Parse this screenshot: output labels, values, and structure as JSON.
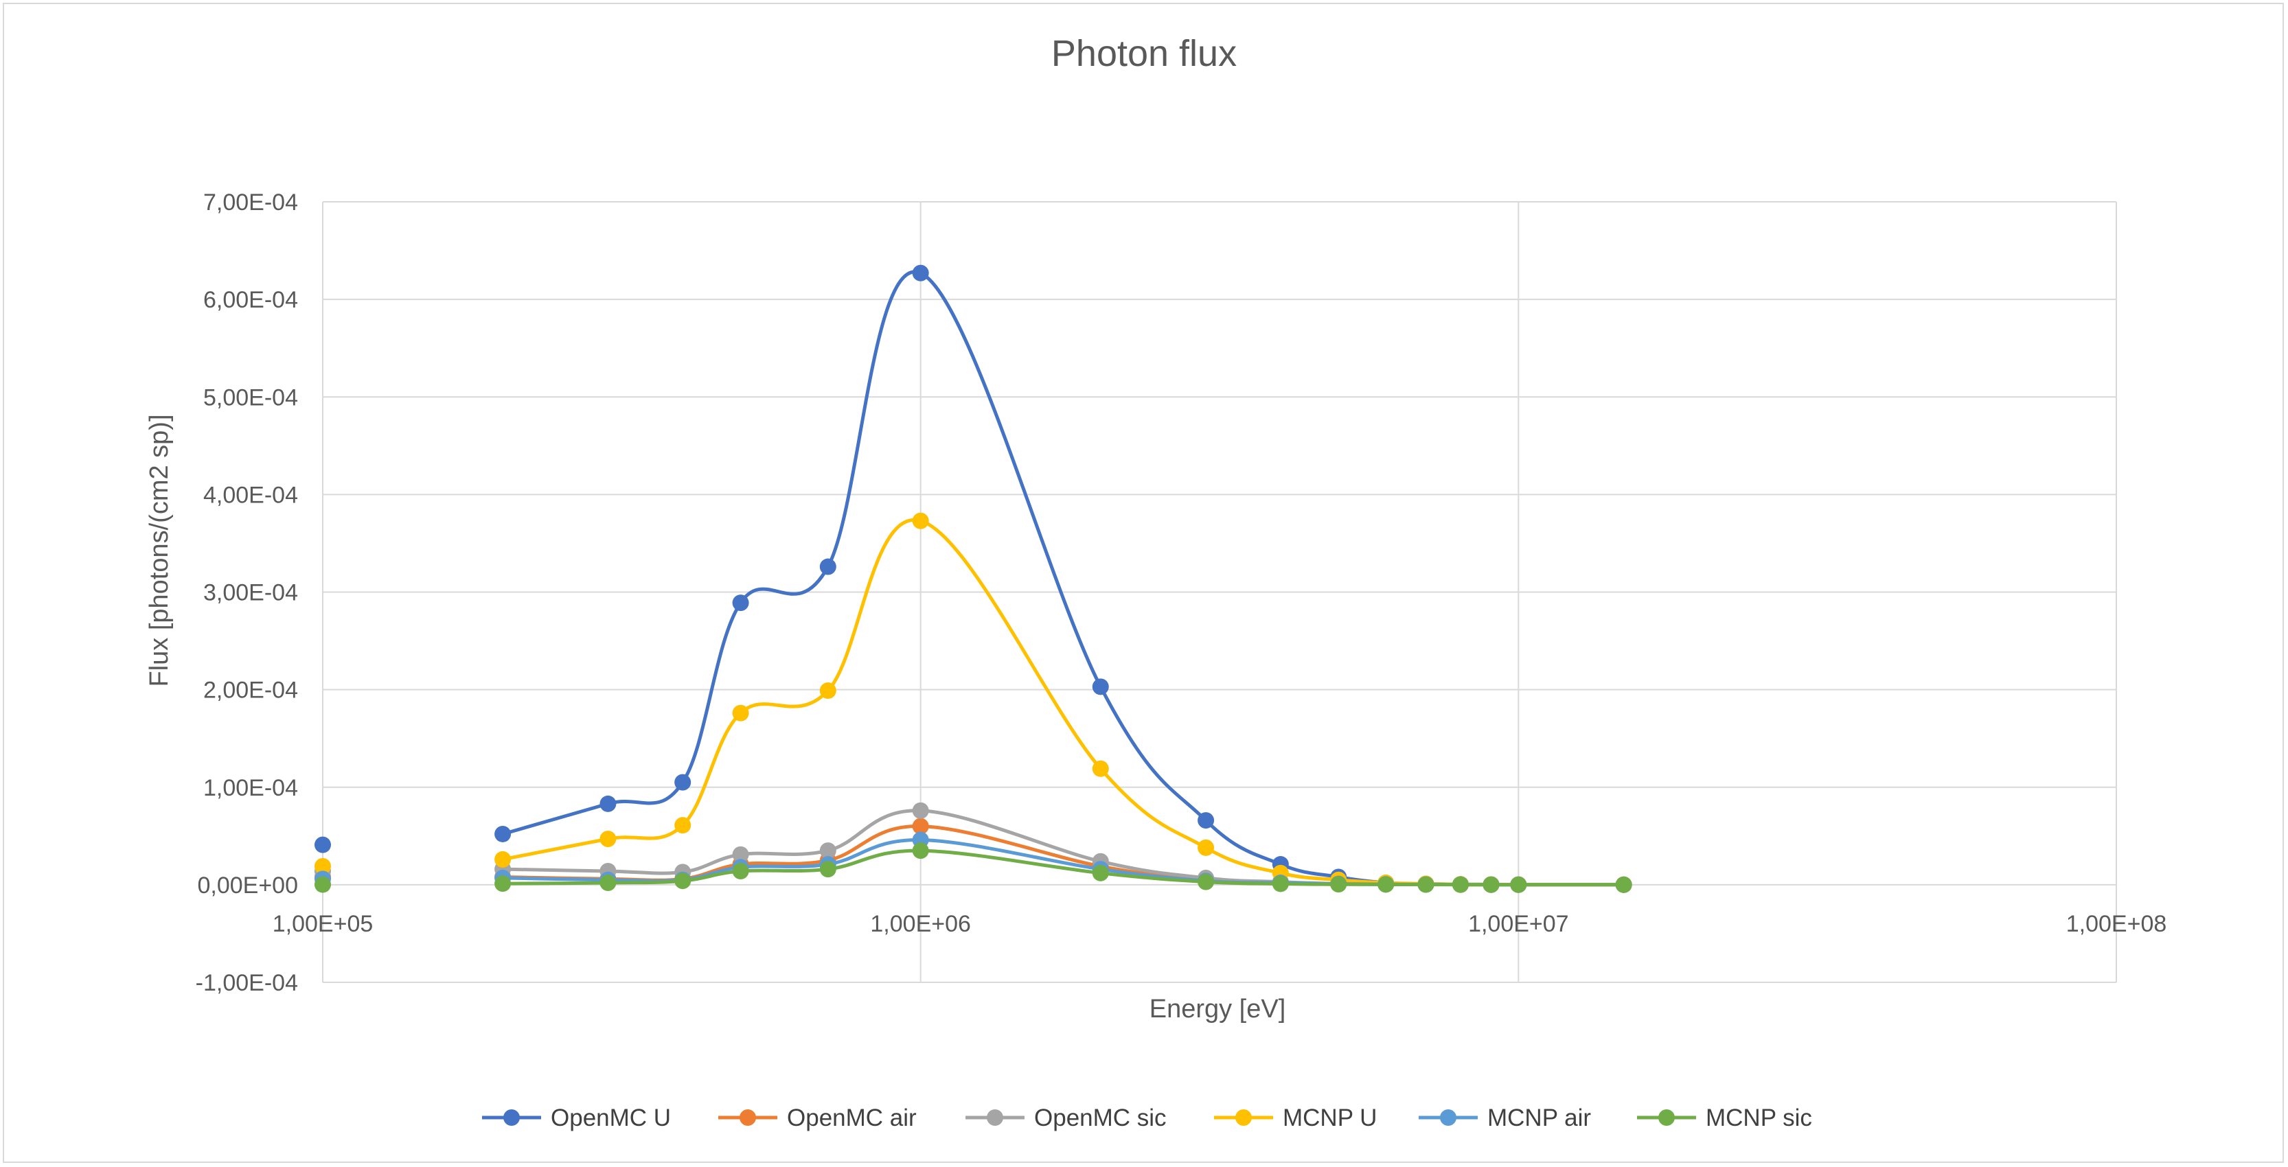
{
  "chart_data": {
    "type": "line",
    "title": "Photon flux",
    "xlabel": "Energy [eV]",
    "ylabel": "Flux [photons/(cm2 sp)]",
    "xscale": "log",
    "xlim": [
      100000,
      100000000
    ],
    "ylim": [
      -0.0001,
      0.0007
    ],
    "x_ticks": [
      100000,
      1000000,
      10000000,
      100000000
    ],
    "x_tick_labels": [
      "1,00E+05",
      "1,00E+06",
      "1,00E+07",
      "1,00E+08"
    ],
    "y_ticks": [
      -0.0001,
      0,
      0.0001,
      0.0002,
      0.0003,
      0.0004,
      0.0005,
      0.0006,
      0.0007
    ],
    "y_tick_labels": [
      "-1,00E-04",
      "0,00E+00",
      "1,00E-04",
      "2,00E-04",
      "3,00E-04",
      "4,00E-04",
      "5,00E-04",
      "6,00E-04",
      "7,00E-04"
    ],
    "grid": true,
    "legend_position": "bottom",
    "series": [
      {
        "name": "OpenMC U",
        "color": "#4472C4",
        "smooth": true,
        "points": [
          [
            100000,
            4.1e-05
          ],
          [
            200000,
            5.2e-05
          ],
          [
            300000,
            8.3e-05
          ],
          [
            400000,
            0.000105
          ],
          [
            500000,
            0.000289
          ],
          [
            700000,
            0.000326
          ],
          [
            1000000,
            0.000627
          ],
          [
            2000000,
            0.000203
          ],
          [
            3000000,
            6.6e-05
          ],
          [
            4000000,
            2.1e-05
          ],
          [
            5000000,
            8e-06
          ],
          [
            6000000,
            2e-06
          ],
          [
            7000000,
            1e-06
          ],
          [
            8000000,
            5e-07
          ],
          [
            9000000,
            3e-07
          ],
          [
            10000000,
            2e-07
          ],
          [
            15000000,
            1e-07
          ]
        ]
      },
      {
        "name": "OpenMC air",
        "color": "#ED7D31",
        "smooth": true,
        "points": [
          [
            100000,
            8e-06
          ],
          [
            200000,
            8e-06
          ],
          [
            300000,
            6e-06
          ],
          [
            400000,
            6e-06
          ],
          [
            500000,
            2.1e-05
          ],
          [
            700000,
            2.5e-05
          ],
          [
            1000000,
            6e-05
          ],
          [
            2000000,
            1.9e-05
          ],
          [
            3000000,
            5e-06
          ],
          [
            4000000,
            2e-06
          ],
          [
            5000000,
            1e-06
          ],
          [
            6000000,
            5e-07
          ],
          [
            7000000,
            3e-07
          ],
          [
            8000000,
            2e-07
          ],
          [
            9000000,
            1e-07
          ],
          [
            10000000,
            1e-07
          ],
          [
            15000000,
            5e-08
          ]
        ]
      },
      {
        "name": "OpenMC sic",
        "color": "#A5A5A5",
        "smooth": true,
        "points": [
          [
            100000,
            1.4e-05
          ],
          [
            200000,
            1.6e-05
          ],
          [
            300000,
            1.4e-05
          ],
          [
            400000,
            1.3e-05
          ],
          [
            500000,
            3.1e-05
          ],
          [
            700000,
            3.5e-05
          ],
          [
            1000000,
            7.6e-05
          ],
          [
            2000000,
            2.4e-05
          ],
          [
            3000000,
            7e-06
          ],
          [
            4000000,
            3e-06
          ],
          [
            5000000,
            1e-06
          ],
          [
            6000000,
            5e-07
          ],
          [
            7000000,
            3e-07
          ],
          [
            8000000,
            2e-07
          ],
          [
            9000000,
            1e-07
          ],
          [
            10000000,
            1e-07
          ],
          [
            15000000,
            5e-08
          ]
        ]
      },
      {
        "name": "MCNP U",
        "color": "#FFC000",
        "smooth": true,
        "points": [
          [
            100000,
            1.9e-05
          ],
          [
            200000,
            2.6e-05
          ],
          [
            300000,
            4.7e-05
          ],
          [
            400000,
            6.1e-05
          ],
          [
            500000,
            0.000176
          ],
          [
            700000,
            0.000199
          ],
          [
            1000000,
            0.000373
          ],
          [
            2000000,
            0.000119
          ],
          [
            3000000,
            3.8e-05
          ],
          [
            4000000,
            1.2e-05
          ],
          [
            5000000,
            5e-06
          ],
          [
            6000000,
            2e-06
          ],
          [
            7000000,
            1e-06
          ],
          [
            8000000,
            5e-07
          ],
          [
            9000000,
            3e-07
          ],
          [
            10000000,
            2e-07
          ],
          [
            15000000,
            1e-07
          ]
        ]
      },
      {
        "name": "MCNP air",
        "color": "#5B9BD5",
        "smooth": true,
        "points": [
          [
            100000,
            6e-06
          ],
          [
            200000,
            7e-06
          ],
          [
            300000,
            5e-06
          ],
          [
            400000,
            5e-06
          ],
          [
            500000,
            1.8e-05
          ],
          [
            700000,
            2.1e-05
          ],
          [
            1000000,
            4.6e-05
          ],
          [
            2000000,
            1.6e-05
          ],
          [
            3000000,
            4e-06
          ],
          [
            4000000,
            2e-06
          ],
          [
            5000000,
            1e-06
          ],
          [
            6000000,
            5e-07
          ],
          [
            7000000,
            3e-07
          ],
          [
            8000000,
            2e-07
          ],
          [
            9000000,
            1e-07
          ],
          [
            10000000,
            1e-07
          ],
          [
            15000000,
            5e-08
          ]
        ]
      },
      {
        "name": "MCNP sic",
        "color": "#70AD47",
        "smooth": true,
        "points": [
          [
            100000,
            2e-07
          ],
          [
            200000,
            1.2e-06
          ],
          [
            300000,
            2e-06
          ],
          [
            400000,
            4e-06
          ],
          [
            500000,
            1.4e-05
          ],
          [
            700000,
            1.6e-05
          ],
          [
            1000000,
            3.5e-05
          ],
          [
            2000000,
            1.2e-05
          ],
          [
            3000000,
            3e-06
          ],
          [
            4000000,
            1e-06
          ],
          [
            5000000,
            5e-07
          ],
          [
            6000000,
            3e-07
          ],
          [
            7000000,
            2e-07
          ],
          [
            8000000,
            1e-07
          ],
          [
            9000000,
            1e-07
          ],
          [
            10000000,
            5e-08
          ],
          [
            15000000,
            2e-08
          ]
        ]
      }
    ]
  }
}
